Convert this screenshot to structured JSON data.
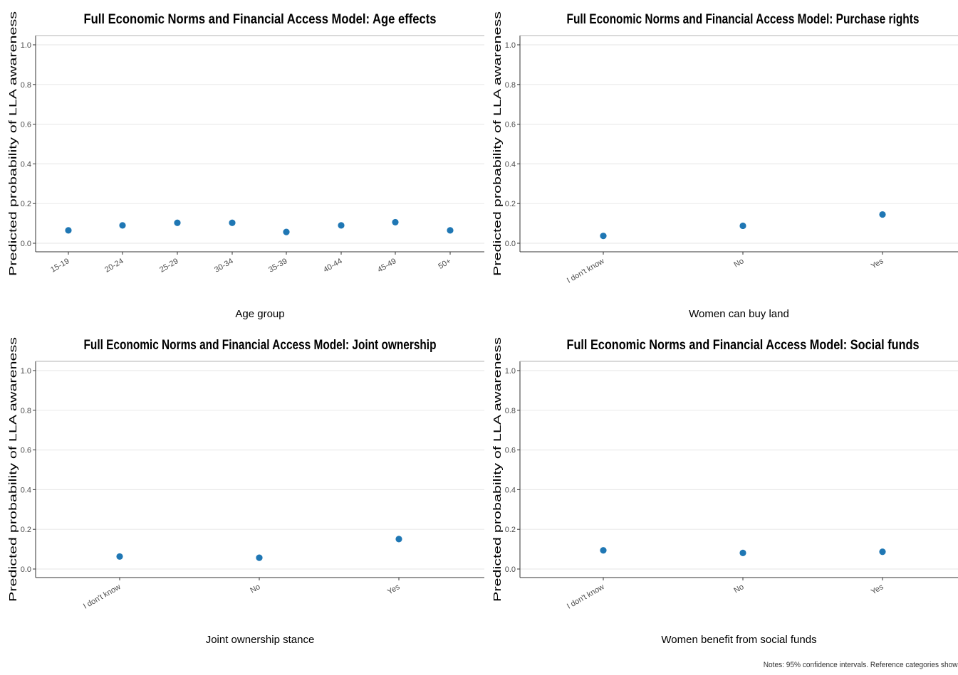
{
  "footer": {
    "notes": "Notes: 95% confidence intervals. Reference categories show"
  },
  "colors": {
    "point": "#1f77b4",
    "grid": "#ebebeb",
    "axis": "#333333",
    "text": "#000000",
    "tick_text": "#4d4d4d"
  },
  "chart_data": [
    {
      "type": "scatter",
      "title": "Full Economic Norms and Financial Access Model: Age effects",
      "xlabel": "Age group",
      "ylabel": "Predicted probability of LLA awareness",
      "categories": [
        "15-19",
        "20-24",
        "25-29",
        "30-34",
        "35-39",
        "40-44",
        "45-49",
        "50+"
      ],
      "values": [
        0.065,
        0.09,
        0.103,
        0.103,
        0.057,
        0.09,
        0.106,
        0.065
      ],
      "ylim": [
        0,
        1
      ],
      "yticks": [
        "0.0",
        "0.2",
        "0.4",
        "0.6",
        "0.8",
        "1.0"
      ],
      "grid": true
    },
    {
      "type": "scatter",
      "title": "Full Economic Norms and Financial Access Model: Purchase rights",
      "xlabel": "Women can buy land",
      "ylabel": "Predicted probability of LLA awareness",
      "categories": [
        "I don't know",
        "No",
        "Yes"
      ],
      "values": [
        0.037,
        0.088,
        0.145
      ],
      "ylim": [
        0,
        1
      ],
      "yticks": [
        "0.0",
        "0.2",
        "0.4",
        "0.6",
        "0.8",
        "1.0"
      ],
      "grid": true
    },
    {
      "type": "scatter",
      "title": "Full Economic Norms and Financial Access Model: Joint ownership",
      "xlabel": "Joint ownership stance",
      "ylabel": "Predicted probability of LLA awareness",
      "categories": [
        "I don't know",
        "No",
        "Yes"
      ],
      "values": [
        0.063,
        0.057,
        0.151
      ],
      "ylim": [
        0,
        1
      ],
      "yticks": [
        "0.0",
        "0.2",
        "0.4",
        "0.6",
        "0.8",
        "1.0"
      ],
      "grid": true
    },
    {
      "type": "scatter",
      "title": "Full Economic Norms and Financial Access Model: Social funds",
      "xlabel": "Women benefit from social funds",
      "ylabel": "Predicted probability of LLA awareness",
      "categories": [
        "I don't know",
        "No",
        "Yes"
      ],
      "values": [
        0.094,
        0.081,
        0.087
      ],
      "ylim": [
        0,
        1
      ],
      "yticks": [
        "0.0",
        "0.2",
        "0.4",
        "0.6",
        "0.8",
        "1.0"
      ],
      "grid": true
    }
  ]
}
